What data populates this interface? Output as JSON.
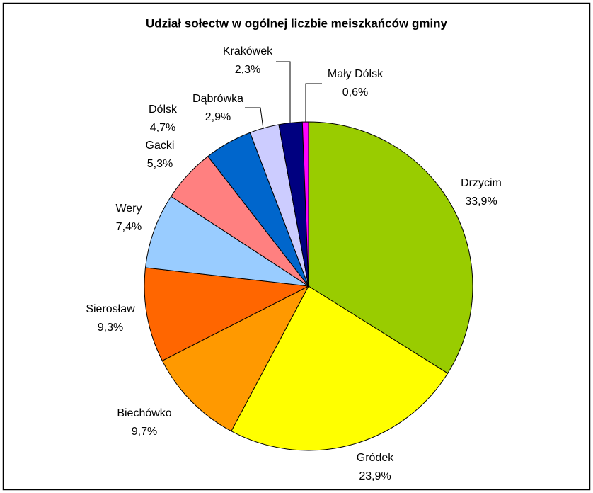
{
  "chart_data": {
    "type": "pie",
    "title": "Udział sołectw w ogólnej liczbie meiszkańców gminy",
    "categories": [
      "Drzycim",
      "Gródek",
      "Biechówko",
      "Sierosław",
      "Wery",
      "Gacki",
      "Dólsk",
      "Dąbrówka",
      "Krakówek",
      "Mały Dólsk"
    ],
    "values": [
      33.9,
      23.9,
      9.7,
      9.3,
      7.4,
      5.3,
      4.7,
      2.9,
      2.3,
      0.6
    ],
    "value_labels": [
      "33,9%",
      "23,9%",
      "9,7%",
      "9,3%",
      "7,4%",
      "5,3%",
      "4,7%",
      "2,9%",
      "2,3%",
      "0,6%"
    ],
    "colors": [
      "#99cc00",
      "#ffff00",
      "#ff9900",
      "#ff6600",
      "#99ccff",
      "#ff8080",
      "#0066cc",
      "#ccccff",
      "#000080",
      "#ff00ff"
    ]
  }
}
